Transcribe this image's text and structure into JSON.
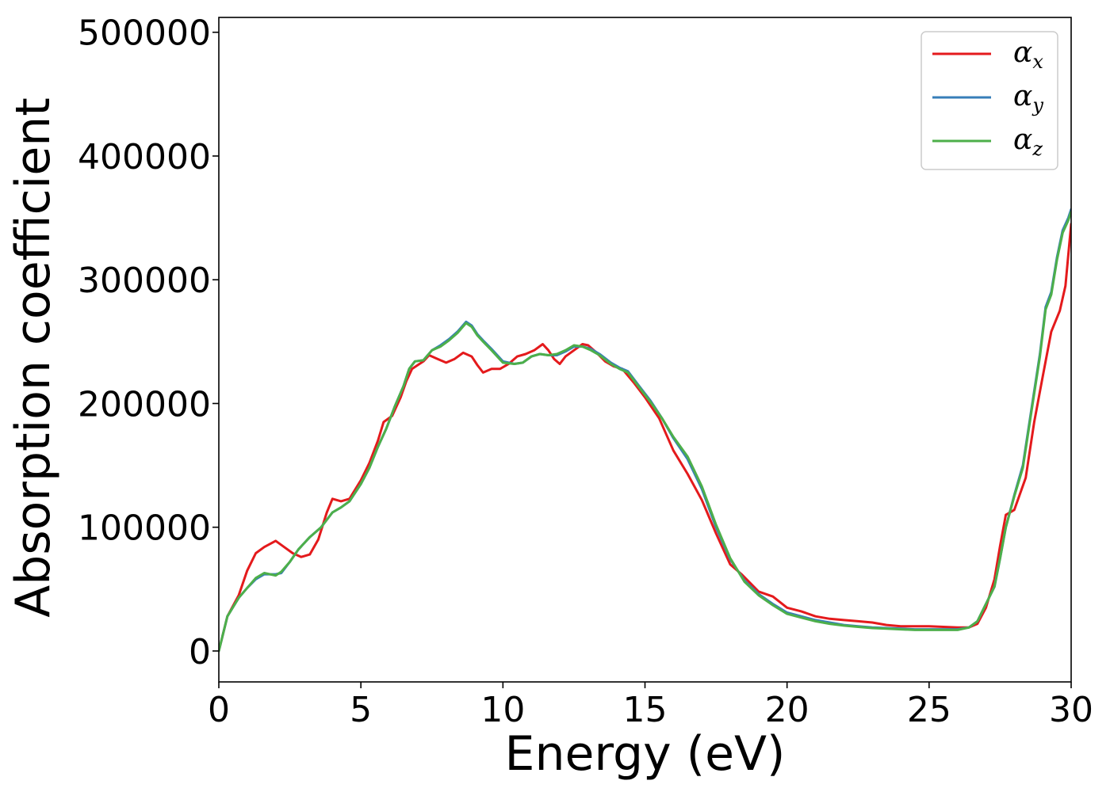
{
  "chart_data": {
    "type": "line",
    "xlabel": "Energy (eV)",
    "ylabel": "Absorption coefficient",
    "xlim": [
      0,
      30
    ],
    "ylim": [
      -25000,
      512000
    ],
    "x_ticks": [
      0,
      5,
      10,
      15,
      20,
      25,
      30
    ],
    "x_tick_labels": [
      "0",
      "5",
      "10",
      "15",
      "20",
      "25",
      "30"
    ],
    "y_ticks": [
      0,
      100000,
      200000,
      300000,
      400000,
      500000
    ],
    "y_tick_labels": [
      "0",
      "100000",
      "200000",
      "300000",
      "400000",
      "500000"
    ],
    "grid": false,
    "legend_position": "top-right",
    "series": [
      {
        "name": "αx",
        "symbol": "α",
        "subscript": "x",
        "color": "#e41a1c",
        "points": [
          [
            0,
            0
          ],
          [
            0.3,
            28000
          ],
          [
            0.7,
            45000
          ],
          [
            1.0,
            65000
          ],
          [
            1.3,
            79000
          ],
          [
            1.6,
            84000
          ],
          [
            2.0,
            89000
          ],
          [
            2.3,
            84000
          ],
          [
            2.6,
            79000
          ],
          [
            2.9,
            76000
          ],
          [
            3.2,
            78000
          ],
          [
            3.5,
            90000
          ],
          [
            3.8,
            112000
          ],
          [
            4.0,
            123000
          ],
          [
            4.3,
            121000
          ],
          [
            4.6,
            123000
          ],
          [
            5.0,
            138000
          ],
          [
            5.3,
            152000
          ],
          [
            5.6,
            170000
          ],
          [
            5.8,
            185000
          ],
          [
            6.1,
            190000
          ],
          [
            6.4,
            205000
          ],
          [
            6.6,
            218000
          ],
          [
            6.8,
            228000
          ],
          [
            7.0,
            231000
          ],
          [
            7.2,
            234000
          ],
          [
            7.4,
            239000
          ],
          [
            7.7,
            236000
          ],
          [
            8.0,
            233000
          ],
          [
            8.3,
            236000
          ],
          [
            8.6,
            241000
          ],
          [
            8.9,
            238000
          ],
          [
            9.1,
            231000
          ],
          [
            9.3,
            225000
          ],
          [
            9.6,
            228000
          ],
          [
            9.9,
            228000
          ],
          [
            10.2,
            232000
          ],
          [
            10.5,
            238000
          ],
          [
            10.8,
            240000
          ],
          [
            11.1,
            243000
          ],
          [
            11.4,
            248000
          ],
          [
            11.6,
            243000
          ],
          [
            11.8,
            236000
          ],
          [
            12.0,
            232000
          ],
          [
            12.2,
            238000
          ],
          [
            12.5,
            243000
          ],
          [
            12.8,
            248000
          ],
          [
            13.0,
            247000
          ],
          [
            13.3,
            241000
          ],
          [
            13.6,
            234000
          ],
          [
            13.9,
            230000
          ],
          [
            14.2,
            228000
          ],
          [
            14.6,
            217000
          ],
          [
            15.0,
            205000
          ],
          [
            15.5,
            188000
          ],
          [
            16.0,
            162000
          ],
          [
            16.5,
            143000
          ],
          [
            17.0,
            122000
          ],
          [
            17.5,
            95000
          ],
          [
            18.0,
            70000
          ],
          [
            18.4,
            62000
          ],
          [
            18.7,
            55000
          ],
          [
            19.0,
            48000
          ],
          [
            19.5,
            44000
          ],
          [
            20.0,
            35000
          ],
          [
            20.5,
            32000
          ],
          [
            21.0,
            28000
          ],
          [
            21.5,
            26000
          ],
          [
            22.0,
            25000
          ],
          [
            22.5,
            24000
          ],
          [
            23.0,
            23000
          ],
          [
            23.5,
            21000
          ],
          [
            24.0,
            20000
          ],
          [
            24.5,
            20000
          ],
          [
            25.0,
            20000
          ],
          [
            25.5,
            19500
          ],
          [
            26.0,
            19000
          ],
          [
            26.4,
            19000
          ],
          [
            26.7,
            22000
          ],
          [
            27.0,
            35000
          ],
          [
            27.3,
            58000
          ],
          [
            27.5,
            85000
          ],
          [
            27.7,
            110000
          ],
          [
            28.0,
            114000
          ],
          [
            28.4,
            140000
          ],
          [
            28.7,
            185000
          ],
          [
            29.0,
            222000
          ],
          [
            29.3,
            258000
          ],
          [
            29.6,
            275000
          ],
          [
            29.8,
            295000
          ],
          [
            30.0,
            345000
          ]
        ]
      },
      {
        "name": "αy",
        "symbol": "α",
        "subscript": "y",
        "color": "#377eb8",
        "points": [
          [
            0,
            0
          ],
          [
            0.3,
            28000
          ],
          [
            0.7,
            43000
          ],
          [
            1.0,
            51000
          ],
          [
            1.3,
            58000
          ],
          [
            1.6,
            62000
          ],
          [
            2.0,
            62000
          ],
          [
            2.2,
            63000
          ],
          [
            2.5,
            72000
          ],
          [
            2.8,
            82000
          ],
          [
            3.2,
            92000
          ],
          [
            3.6,
            100000
          ],
          [
            4.0,
            112000
          ],
          [
            4.3,
            116000
          ],
          [
            4.6,
            121000
          ],
          [
            5.0,
            135000
          ],
          [
            5.3,
            148000
          ],
          [
            5.6,
            165000
          ],
          [
            5.9,
            180000
          ],
          [
            6.2,
            198000
          ],
          [
            6.5,
            214000
          ],
          [
            6.7,
            228000
          ],
          [
            6.9,
            234000
          ],
          [
            7.2,
            235000
          ],
          [
            7.5,
            243000
          ],
          [
            7.8,
            247000
          ],
          [
            8.1,
            252000
          ],
          [
            8.4,
            258000
          ],
          [
            8.7,
            266000
          ],
          [
            8.9,
            263000
          ],
          [
            9.1,
            256000
          ],
          [
            9.3,
            251000
          ],
          [
            9.6,
            244000
          ],
          [
            10.0,
            234000
          ],
          [
            10.4,
            232000
          ],
          [
            10.7,
            233000
          ],
          [
            11.0,
            238000
          ],
          [
            11.3,
            240000
          ],
          [
            11.6,
            239000
          ],
          [
            11.9,
            239000
          ],
          [
            12.2,
            242000
          ],
          [
            12.5,
            246000
          ],
          [
            12.8,
            246000
          ],
          [
            13.1,
            244000
          ],
          [
            13.4,
            240000
          ],
          [
            13.8,
            233000
          ],
          [
            14.1,
            229000
          ],
          [
            14.4,
            226000
          ],
          [
            14.8,
            214000
          ],
          [
            15.2,
            202000
          ],
          [
            15.6,
            188000
          ],
          [
            16.0,
            172000
          ],
          [
            16.5,
            155000
          ],
          [
            17.0,
            131000
          ],
          [
            17.5,
            100000
          ],
          [
            18.0,
            74000
          ],
          [
            18.5,
            57000
          ],
          [
            19.0,
            46000
          ],
          [
            19.5,
            38000
          ],
          [
            20.0,
            31000
          ],
          [
            20.5,
            28000
          ],
          [
            21.0,
            25000
          ],
          [
            21.5,
            23000
          ],
          [
            22.0,
            21000
          ],
          [
            22.5,
            20000
          ],
          [
            23.0,
            19000
          ],
          [
            23.5,
            18500
          ],
          [
            24.0,
            18000
          ],
          [
            24.5,
            17500
          ],
          [
            25.0,
            17500
          ],
          [
            25.5,
            17500
          ],
          [
            26.0,
            17500
          ],
          [
            26.4,
            19000
          ],
          [
            26.7,
            24000
          ],
          [
            27.0,
            38000
          ],
          [
            27.3,
            52000
          ],
          [
            27.5,
            75000
          ],
          [
            27.7,
            100000
          ],
          [
            28.0,
            126000
          ],
          [
            28.3,
            150000
          ],
          [
            28.6,
            195000
          ],
          [
            28.9,
            240000
          ],
          [
            29.1,
            278000
          ],
          [
            29.3,
            290000
          ],
          [
            29.5,
            318000
          ],
          [
            29.7,
            340000
          ],
          [
            29.9,
            350000
          ],
          [
            30.0,
            357000
          ]
        ]
      },
      {
        "name": "αz",
        "symbol": "α",
        "subscript": "z",
        "color": "#4daf4a",
        "points": [
          [
            0,
            0
          ],
          [
            0.3,
            28000
          ],
          [
            0.7,
            43000
          ],
          [
            1.0,
            51000
          ],
          [
            1.3,
            59000
          ],
          [
            1.6,
            63000
          ],
          [
            2.0,
            61000
          ],
          [
            2.2,
            64000
          ],
          [
            2.5,
            72000
          ],
          [
            2.8,
            82000
          ],
          [
            3.2,
            92000
          ],
          [
            3.6,
            100000
          ],
          [
            4.0,
            112000
          ],
          [
            4.3,
            116000
          ],
          [
            4.6,
            121000
          ],
          [
            5.0,
            135000
          ],
          [
            5.3,
            148000
          ],
          [
            5.6,
            165000
          ],
          [
            5.9,
            180000
          ],
          [
            6.2,
            198000
          ],
          [
            6.5,
            214000
          ],
          [
            6.7,
            228000
          ],
          [
            6.9,
            234000
          ],
          [
            7.2,
            235000
          ],
          [
            7.5,
            243000
          ],
          [
            7.8,
            246000
          ],
          [
            8.1,
            251000
          ],
          [
            8.4,
            257000
          ],
          [
            8.7,
            265000
          ],
          [
            8.9,
            262000
          ],
          [
            9.1,
            255000
          ],
          [
            9.3,
            250000
          ],
          [
            9.6,
            243000
          ],
          [
            10.0,
            233000
          ],
          [
            10.4,
            232000
          ],
          [
            10.7,
            233000
          ],
          [
            11.0,
            238000
          ],
          [
            11.3,
            240000
          ],
          [
            11.6,
            239000
          ],
          [
            11.9,
            240000
          ],
          [
            12.2,
            243000
          ],
          [
            12.5,
            247000
          ],
          [
            12.8,
            246000
          ],
          [
            13.1,
            243000
          ],
          [
            13.4,
            239000
          ],
          [
            13.8,
            232000
          ],
          [
            14.1,
            228000
          ],
          [
            14.4,
            225000
          ],
          [
            14.8,
            213000
          ],
          [
            15.2,
            201000
          ],
          [
            15.6,
            188000
          ],
          [
            16.0,
            173000
          ],
          [
            16.5,
            157000
          ],
          [
            17.0,
            133000
          ],
          [
            17.5,
            102000
          ],
          [
            18.0,
            75000
          ],
          [
            18.5,
            56000
          ],
          [
            19.0,
            45000
          ],
          [
            19.5,
            37000
          ],
          [
            20.0,
            30000
          ],
          [
            20.5,
            27000
          ],
          [
            21.0,
            24000
          ],
          [
            21.5,
            22000
          ],
          [
            22.0,
            20500
          ],
          [
            22.5,
            19500
          ],
          [
            23.0,
            18500
          ],
          [
            23.5,
            18000
          ],
          [
            24.0,
            17500
          ],
          [
            24.5,
            17000
          ],
          [
            25.0,
            17000
          ],
          [
            25.5,
            17000
          ],
          [
            26.0,
            17000
          ],
          [
            26.4,
            19000
          ],
          [
            26.7,
            24000
          ],
          [
            27.0,
            38000
          ],
          [
            27.3,
            52000
          ],
          [
            27.5,
            75000
          ],
          [
            27.7,
            100000
          ],
          [
            28.0,
            125000
          ],
          [
            28.3,
            148000
          ],
          [
            28.6,
            193000
          ],
          [
            28.9,
            238000
          ],
          [
            29.1,
            276000
          ],
          [
            29.3,
            288000
          ],
          [
            29.5,
            316000
          ],
          [
            29.7,
            338000
          ],
          [
            29.9,
            348000
          ],
          [
            30.0,
            355000
          ]
        ]
      }
    ]
  }
}
